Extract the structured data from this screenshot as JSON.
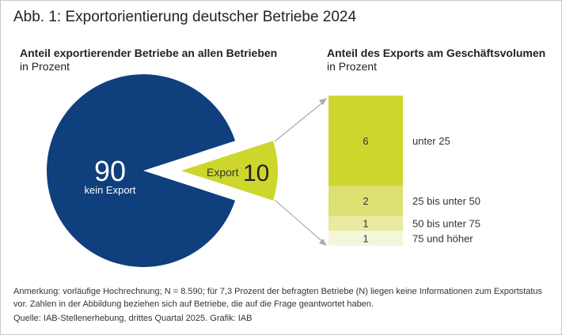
{
  "title": "Abb. 1: Exportorientierung deutscher Betriebe 2024",
  "chart_data": [
    {
      "type": "pie",
      "title": "Anteil exportierender Betriebe an allen Betrieben",
      "subtitle": "in Prozent",
      "slices": [
        {
          "label": "kein Export",
          "value": 90,
          "color": "#0f3f7d"
        },
        {
          "label": "Export",
          "value": 10,
          "color": "#cdd62d",
          "exploded": true
        }
      ]
    },
    {
      "type": "bar",
      "stacked": true,
      "title": "Anteil des Exports am Geschäftsvolumen",
      "subtitle": "in Prozent",
      "categories": [
        "unter 25",
        "25 bis unter 50",
        "50 bis unter 75",
        "75 und höher"
      ],
      "values": [
        6,
        2,
        1,
        1
      ],
      "colors": [
        "#cdd62d",
        "#dbe070",
        "#e7ea9f",
        "#f4f6da"
      ]
    }
  ],
  "notes": {
    "remark": "Anmerkung: vorläufige Hochrechnung; N = 8.590; für 7,3 Prozent der befragten Betriebe (N) liegen keine Informationen zum Exportstatus vor. Zahlen in der Abbildung beziehen sich auf Betriebe, die auf die Frage geantwortet haben.",
    "source": "Quelle: IAB-Stellenerhebung, drittes Quartal 2025. Grafik: IAB"
  }
}
